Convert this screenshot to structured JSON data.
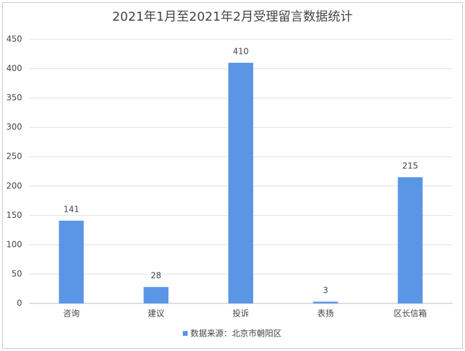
{
  "chart_data": {
    "type": "bar",
    "title": "2021年1月至2021年2月受理留言数据统计",
    "categories": [
      "咨询",
      "建议",
      "投诉",
      "表扬",
      "区长信箱"
    ],
    "series": [
      {
        "name": "数据来源：北京市朝阳区",
        "color": "#5b96e6",
        "values": [
          141,
          28,
          410,
          3,
          215
        ]
      }
    ],
    "ylim": [
      0,
      450
    ],
    "yticks": [
      0,
      50,
      100,
      150,
      200,
      250,
      300,
      350,
      400,
      450
    ],
    "grid": true,
    "legend": "bottom"
  }
}
